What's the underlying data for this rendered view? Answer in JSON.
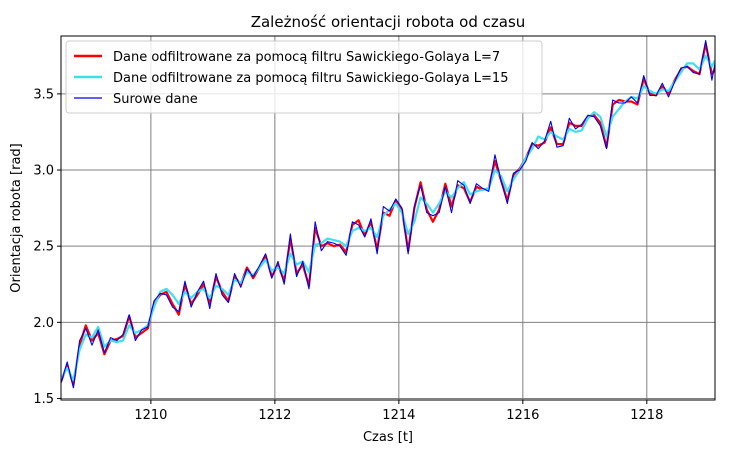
{
  "chart_data": {
    "type": "line",
    "title": "Zależność orientacji robota od czasu",
    "xlabel": "Czas [t]",
    "ylabel": "Orientacja robota [rad]",
    "xlim": [
      1208.55,
      1219.1
    ],
    "ylim": [
      1.49,
      3.88
    ],
    "xticks": [
      1210,
      1212,
      1214,
      1216,
      1218
    ],
    "yticks": [
      1.5,
      2.0,
      2.5,
      3.0,
      3.5
    ],
    "grid": true,
    "legend_position": "top-left",
    "colors": {
      "sg7": "#ff0000",
      "sg15": "#3ee0f0",
      "raw": "#0000ee"
    },
    "series": [
      {
        "name": "Dane odfiltrowane za pomocą filtru Sawickiego-Golaya L=7",
        "key": "sg7",
        "x": [
          1208.55,
          1208.65,
          1208.75,
          1208.85,
          1208.95,
          1209.05,
          1209.15,
          1209.25,
          1209.35,
          1209.45,
          1209.55,
          1209.65,
          1209.75,
          1209.85,
          1209.95,
          1210.05,
          1210.15,
          1210.25,
          1210.35,
          1210.45,
          1210.55,
          1210.65,
          1210.75,
          1210.85,
          1210.95,
          1211.05,
          1211.15,
          1211.25,
          1211.35,
          1211.45,
          1211.55,
          1211.65,
          1211.75,
          1211.85,
          1211.95,
          1212.05,
          1212.15,
          1212.25,
          1212.35,
          1212.45,
          1212.55,
          1212.65,
          1212.75,
          1212.85,
          1212.95,
          1213.05,
          1213.15,
          1213.25,
          1213.35,
          1213.45,
          1213.55,
          1213.65,
          1213.75,
          1213.85,
          1213.95,
          1214.05,
          1214.15,
          1214.25,
          1214.35,
          1214.45,
          1214.55,
          1214.65,
          1214.75,
          1214.85,
          1214.95,
          1215.05,
          1215.15,
          1215.25,
          1215.35,
          1215.45,
          1215.55,
          1215.65,
          1215.75,
          1215.85,
          1215.95,
          1216.05,
          1216.15,
          1216.25,
          1216.35,
          1216.45,
          1216.55,
          1216.65,
          1216.75,
          1216.85,
          1216.95,
          1217.05,
          1217.15,
          1217.25,
          1217.35,
          1217.45,
          1217.55,
          1217.65,
          1217.75,
          1217.85,
          1217.95,
          1218.05,
          1218.15,
          1218.25,
          1218.35,
          1218.45,
          1218.55,
          1218.65,
          1218.75,
          1218.85,
          1218.95,
          1219.05,
          1219.1
        ],
        "values": [
          1.61,
          1.72,
          1.59,
          1.85,
          1.98,
          1.88,
          1.93,
          1.79,
          1.88,
          1.89,
          1.91,
          2.04,
          1.9,
          1.93,
          1.96,
          2.12,
          2.18,
          2.2,
          2.12,
          2.05,
          2.25,
          2.12,
          2.18,
          2.25,
          2.12,
          2.3,
          2.2,
          2.14,
          2.3,
          2.25,
          2.36,
          2.29,
          2.36,
          2.44,
          2.3,
          2.38,
          2.27,
          2.55,
          2.32,
          2.38,
          2.24,
          2.62,
          2.5,
          2.52,
          2.5,
          2.51,
          2.46,
          2.64,
          2.67,
          2.57,
          2.66,
          2.48,
          2.72,
          2.7,
          2.8,
          2.74,
          2.47,
          2.75,
          2.92,
          2.74,
          2.66,
          2.74,
          2.91,
          2.76,
          2.9,
          2.88,
          2.79,
          2.89,
          2.87,
          2.88,
          3.06,
          2.93,
          2.8,
          2.97,
          3.01,
          3.08,
          3.17,
          3.16,
          3.18,
          3.28,
          3.17,
          3.17,
          3.31,
          3.29,
          3.29,
          3.35,
          3.36,
          3.31,
          3.15,
          3.43,
          3.46,
          3.45,
          3.45,
          3.43,
          3.6,
          3.5,
          3.49,
          3.55,
          3.5,
          3.59,
          3.66,
          3.68,
          3.65,
          3.63,
          3.83,
          3.63,
          3.66
        ]
      },
      {
        "name": "Dane odfiltrowane za pomocą filtru Sawickiego-Golaya L=15",
        "key": "sg15",
        "x": [
          1208.55,
          1208.65,
          1208.75,
          1208.85,
          1208.95,
          1209.05,
          1209.15,
          1209.25,
          1209.35,
          1209.45,
          1209.55,
          1209.65,
          1209.75,
          1209.85,
          1209.95,
          1210.05,
          1210.15,
          1210.25,
          1210.35,
          1210.45,
          1210.55,
          1210.65,
          1210.75,
          1210.85,
          1210.95,
          1211.05,
          1211.15,
          1211.25,
          1211.35,
          1211.45,
          1211.55,
          1211.65,
          1211.75,
          1211.85,
          1211.95,
          1212.05,
          1212.15,
          1212.25,
          1212.35,
          1212.45,
          1212.55,
          1212.65,
          1212.75,
          1212.85,
          1212.95,
          1213.05,
          1213.15,
          1213.25,
          1213.35,
          1213.45,
          1213.55,
          1213.65,
          1213.75,
          1213.85,
          1213.95,
          1214.05,
          1214.15,
          1214.25,
          1214.35,
          1214.45,
          1214.55,
          1214.65,
          1214.75,
          1214.85,
          1214.95,
          1215.05,
          1215.15,
          1215.25,
          1215.35,
          1215.45,
          1215.55,
          1215.65,
          1215.75,
          1215.85,
          1215.95,
          1216.05,
          1216.15,
          1216.25,
          1216.35,
          1216.45,
          1216.55,
          1216.65,
          1216.75,
          1216.85,
          1216.95,
          1217.05,
          1217.15,
          1217.25,
          1217.35,
          1217.45,
          1217.55,
          1217.65,
          1217.75,
          1217.85,
          1217.95,
          1218.05,
          1218.15,
          1218.25,
          1218.35,
          1218.45,
          1218.55,
          1218.65,
          1218.75,
          1218.85,
          1218.95,
          1219.05,
          1219.1
        ],
        "values": [
          1.63,
          1.7,
          1.62,
          1.82,
          1.92,
          1.9,
          1.97,
          1.84,
          1.88,
          1.87,
          1.88,
          1.98,
          1.93,
          1.95,
          1.98,
          2.1,
          2.2,
          2.22,
          2.18,
          2.12,
          2.2,
          2.16,
          2.2,
          2.22,
          2.16,
          2.24,
          2.22,
          2.18,
          2.28,
          2.26,
          2.33,
          2.31,
          2.36,
          2.41,
          2.34,
          2.36,
          2.32,
          2.45,
          2.38,
          2.4,
          2.33,
          2.51,
          2.52,
          2.55,
          2.54,
          2.53,
          2.5,
          2.6,
          2.62,
          2.6,
          2.62,
          2.56,
          2.7,
          2.74,
          2.78,
          2.72,
          2.58,
          2.66,
          2.82,
          2.78,
          2.72,
          2.78,
          2.86,
          2.82,
          2.88,
          2.92,
          2.84,
          2.86,
          2.87,
          2.88,
          3.0,
          2.96,
          2.86,
          2.94,
          3.0,
          3.08,
          3.14,
          3.22,
          3.2,
          3.25,
          3.22,
          3.2,
          3.27,
          3.25,
          3.26,
          3.34,
          3.38,
          3.35,
          3.22,
          3.35,
          3.4,
          3.45,
          3.48,
          3.47,
          3.55,
          3.52,
          3.5,
          3.53,
          3.52,
          3.58,
          3.64,
          3.7,
          3.7,
          3.66,
          3.75,
          3.68,
          3.72
        ]
      },
      {
        "name": "Surowe dane",
        "key": "raw",
        "x": [
          1208.55,
          1208.65,
          1208.75,
          1208.85,
          1208.95,
          1209.05,
          1209.15,
          1209.25,
          1209.35,
          1209.45,
          1209.55,
          1209.65,
          1209.75,
          1209.85,
          1209.95,
          1210.05,
          1210.15,
          1210.25,
          1210.35,
          1210.45,
          1210.55,
          1210.65,
          1210.75,
          1210.85,
          1210.95,
          1211.05,
          1211.15,
          1211.25,
          1211.35,
          1211.45,
          1211.55,
          1211.65,
          1211.75,
          1211.85,
          1211.95,
          1212.05,
          1212.15,
          1212.25,
          1212.35,
          1212.45,
          1212.55,
          1212.65,
          1212.75,
          1212.85,
          1212.95,
          1213.05,
          1213.15,
          1213.25,
          1213.35,
          1213.45,
          1213.55,
          1213.65,
          1213.75,
          1213.85,
          1213.95,
          1214.05,
          1214.15,
          1214.25,
          1214.35,
          1214.45,
          1214.55,
          1214.65,
          1214.75,
          1214.85,
          1214.95,
          1215.05,
          1215.15,
          1215.25,
          1215.35,
          1215.45,
          1215.55,
          1215.65,
          1215.75,
          1215.85,
          1215.95,
          1216.05,
          1216.15,
          1216.25,
          1216.35,
          1216.45,
          1216.55,
          1216.65,
          1216.75,
          1216.85,
          1216.95,
          1217.05,
          1217.15,
          1217.25,
          1217.35,
          1217.45,
          1217.55,
          1217.65,
          1217.75,
          1217.85,
          1217.95,
          1218.05,
          1218.15,
          1218.25,
          1218.35,
          1218.45,
          1218.55,
          1218.65,
          1218.75,
          1218.85,
          1218.95,
          1219.05,
          1219.1
        ],
        "values": [
          1.6,
          1.74,
          1.57,
          1.88,
          1.96,
          1.85,
          1.95,
          1.8,
          1.9,
          1.88,
          1.92,
          2.05,
          1.88,
          1.95,
          1.97,
          2.14,
          2.19,
          2.18,
          2.1,
          2.07,
          2.27,
          2.1,
          2.2,
          2.27,
          2.09,
          2.32,
          2.18,
          2.13,
          2.32,
          2.23,
          2.35,
          2.3,
          2.37,
          2.45,
          2.29,
          2.4,
          2.25,
          2.58,
          2.3,
          2.4,
          2.22,
          2.66,
          2.47,
          2.53,
          2.52,
          2.5,
          2.44,
          2.66,
          2.64,
          2.56,
          2.68,
          2.45,
          2.76,
          2.73,
          2.81,
          2.75,
          2.45,
          2.76,
          2.9,
          2.72,
          2.7,
          2.72,
          2.89,
          2.72,
          2.93,
          2.9,
          2.78,
          2.91,
          2.88,
          2.86,
          3.1,
          2.93,
          2.78,
          2.98,
          3.0,
          3.06,
          3.18,
          3.14,
          3.19,
          3.32,
          3.15,
          3.16,
          3.34,
          3.27,
          3.3,
          3.36,
          3.35,
          3.29,
          3.14,
          3.46,
          3.44,
          3.44,
          3.48,
          3.44,
          3.62,
          3.49,
          3.49,
          3.57,
          3.48,
          3.58,
          3.67,
          3.68,
          3.64,
          3.63,
          3.85,
          3.59,
          3.7
        ]
      }
    ]
  }
}
